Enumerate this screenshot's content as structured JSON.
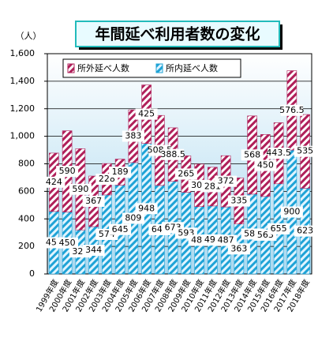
{
  "chart_data": {
    "type": "stacked-bar",
    "title": "年間延べ利用者数の変化",
    "y_label": "（人）",
    "categories": [
      "1999年度",
      "2000年度",
      "2001年度",
      "2002年度",
      "2003年度",
      "2004年度",
      "2005年度",
      "2006年度",
      "2007年度",
      "2008年度",
      "2009年度",
      "2010年度",
      "2011年度",
      "2012年度",
      "2013年度",
      "2014年度",
      "2015年度",
      "2016年度",
      "2017年度",
      "2018年度"
    ],
    "series": [
      {
        "name": "所内延べ人数",
        "color": "#1fa3d6",
        "values": [
          454,
          450,
          320,
          344,
          574,
          645,
          809,
          948,
          643,
          673,
          593,
          489,
          494,
          487,
          363,
          580,
          563,
          655,
          900,
          623
        ]
      },
      {
        "name": "所外延べ人数",
        "color": "#b0205a",
        "values": [
          424,
          590,
          590,
          367,
          228,
          189,
          383,
          425,
          508.5,
          388.5,
          265,
          309,
          281,
          372,
          335,
          568,
          450,
          443.5,
          576.5,
          535
        ]
      }
    ],
    "legend_order": [
      1,
      0
    ],
    "ylim": [
      0,
      1600
    ],
    "yticks": [
      0,
      200,
      400,
      600,
      800,
      {
        "value": 1000,
        "label": "1,000"
      },
      {
        "value": 1200,
        "label": "1,200"
      },
      {
        "value": 1400,
        "label": "1,400"
      },
      {
        "value": 1600,
        "label": "1,600"
      }
    ],
    "grid": true
  }
}
